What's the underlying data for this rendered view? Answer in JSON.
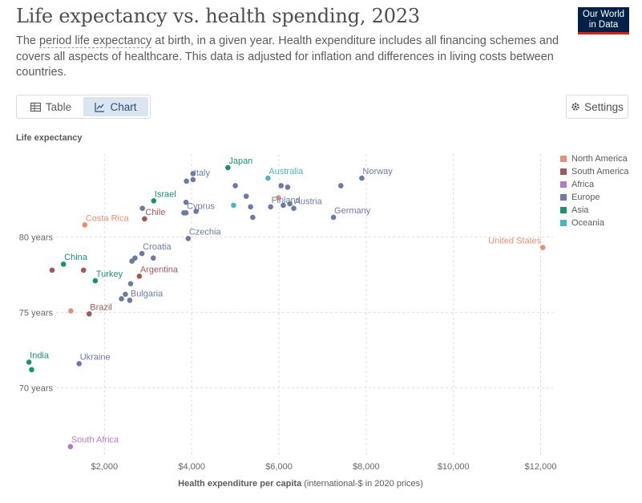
{
  "header": {
    "title": "Life expectancy vs. health spending, 2023",
    "subtitle_pre": "The ",
    "subtitle_link": "period life expectancy",
    "subtitle_post": " at birth, in a given year. Health expenditure includes all financing schemes and covers all aspects of healthcare. This data is adjusted for inflation and differences in living costs between countries.",
    "logo_line1": "Our World",
    "logo_line2": "in Data"
  },
  "toolbar": {
    "table_label": "Table",
    "chart_label": "Chart",
    "settings_label": "Settings"
  },
  "colors": {
    "North America": "#e38f79",
    "South America": "#a05858",
    "Africa": "#b37cc4",
    "Europe": "#6d7ba3",
    "Asia": "#1f8f74",
    "Oceania": "#4fb3c0"
  },
  "chart_data": {
    "type": "scatter",
    "xlabel_bold": "Health expenditure per capita",
    "xlabel_rest": " (international-$ in 2020 prices)",
    "ylabel": "Life expectancy",
    "xlim": [
      800,
      12100
    ],
    "ylim": [
      65.5,
      85.5
    ],
    "x_ticks": [
      2000,
      4000,
      6000,
      8000,
      10000,
      12000
    ],
    "x_tick_labels": [
      "$2,000",
      "$4,000",
      "$6,000",
      "$8,000",
      "$10,000",
      "$12,000"
    ],
    "y_ticks": [
      70,
      75,
      80
    ],
    "y_tick_labels": [
      "70 years",
      "75 years",
      "80 years"
    ],
    "legend": [
      "North America",
      "South America",
      "Africa",
      "Europe",
      "Asia",
      "Oceania"
    ],
    "points": [
      {
        "label": "United States",
        "x": 12050,
        "y": 79.3,
        "region": "North America"
      },
      {
        "label": "Costa Rica",
        "x": 1550,
        "y": 80.8,
        "region": "North America"
      },
      {
        "label": "",
        "x": 5990,
        "y": 82.6,
        "region": "North America"
      },
      {
        "label": "",
        "x": 1230,
        "y": 75.1,
        "region": "North America"
      },
      {
        "label": "Chile",
        "x": 2920,
        "y": 81.2,
        "region": "South America"
      },
      {
        "label": "Argentina",
        "x": 2800,
        "y": 77.4,
        "region": "South America"
      },
      {
        "label": "Brazil",
        "x": 1650,
        "y": 74.9,
        "region": "South America"
      },
      {
        "label": "",
        "x": 800,
        "y": 77.8,
        "region": "South America"
      },
      {
        "label": "",
        "x": 1520,
        "y": 77.8,
        "region": "South America"
      },
      {
        "label": "South Africa",
        "x": 1220,
        "y": 66.1,
        "region": "Africa"
      },
      {
        "label": "Italy",
        "x": 4030,
        "y": 83.8,
        "region": "Europe"
      },
      {
        "label": "",
        "x": 3880,
        "y": 83.7,
        "region": "Europe"
      },
      {
        "label": "",
        "x": 4030,
        "y": 84.2,
        "region": "Europe"
      },
      {
        "label": "Norway",
        "x": 7900,
        "y": 83.9,
        "region": "Europe"
      },
      {
        "label": "",
        "x": 7420,
        "y": 83.4,
        "region": "Europe"
      },
      {
        "label": "Finland",
        "x": 5810,
        "y": 82.0,
        "region": "Europe"
      },
      {
        "label": "Austria",
        "x": 6340,
        "y": 81.9,
        "region": "Europe"
      },
      {
        "label": "Germany",
        "x": 7250,
        "y": 81.3,
        "region": "Europe"
      },
      {
        "label": "Cyprus",
        "x": 3870,
        "y": 81.6,
        "region": "Europe"
      },
      {
        "label": "Czechia",
        "x": 3920,
        "y": 79.9,
        "region": "Europe"
      },
      {
        "label": "Croatia",
        "x": 2860,
        "y": 78.9,
        "region": "Europe"
      },
      {
        "label": "Bulgaria",
        "x": 2580,
        "y": 75.8,
        "region": "Europe"
      },
      {
        "label": "Ukraine",
        "x": 1420,
        "y": 71.6,
        "region": "Europe"
      },
      {
        "label": "",
        "x": 5000,
        "y": 83.4,
        "region": "Europe"
      },
      {
        "label": "",
        "x": 5250,
        "y": 82.7,
        "region": "Europe"
      },
      {
        "label": "",
        "x": 6050,
        "y": 83.4,
        "region": "Europe"
      },
      {
        "label": "",
        "x": 6200,
        "y": 83.3,
        "region": "Europe"
      },
      {
        "label": "",
        "x": 5350,
        "y": 82.0,
        "region": "Europe"
      },
      {
        "label": "",
        "x": 6100,
        "y": 82.1,
        "region": "Europe"
      },
      {
        "label": "",
        "x": 6250,
        "y": 82.2,
        "region": "Europe"
      },
      {
        "label": "",
        "x": 5400,
        "y": 81.3,
        "region": "Europe"
      },
      {
        "label": "",
        "x": 3870,
        "y": 82.3,
        "region": "Europe"
      },
      {
        "label": "",
        "x": 2870,
        "y": 81.9,
        "region": "Europe"
      },
      {
        "label": "",
        "x": 3820,
        "y": 81.6,
        "region": "Europe"
      },
      {
        "label": "",
        "x": 4100,
        "y": 81.7,
        "region": "Europe"
      },
      {
        "label": "",
        "x": 2700,
        "y": 78.6,
        "region": "Europe"
      },
      {
        "label": "",
        "x": 3120,
        "y": 78.6,
        "region": "Europe"
      },
      {
        "label": "",
        "x": 2630,
        "y": 78.4,
        "region": "Europe"
      },
      {
        "label": "",
        "x": 2600,
        "y": 76.9,
        "region": "Europe"
      },
      {
        "label": "",
        "x": 2480,
        "y": 76.2,
        "region": "Europe"
      },
      {
        "label": "",
        "x": 2390,
        "y": 75.9,
        "region": "Europe"
      },
      {
        "label": "Japan",
        "x": 4830,
        "y": 84.6,
        "region": "Asia"
      },
      {
        "label": "Israel",
        "x": 3130,
        "y": 82.4,
        "region": "Asia"
      },
      {
        "label": "China",
        "x": 1060,
        "y": 78.2,
        "region": "Asia"
      },
      {
        "label": "Turkey",
        "x": 1790,
        "y": 77.1,
        "region": "Asia"
      },
      {
        "label": "India",
        "x": 270,
        "y": 71.7,
        "region": "Asia"
      },
      {
        "label": "",
        "x": 330,
        "y": 71.2,
        "region": "Asia"
      },
      {
        "label": "Australia",
        "x": 5750,
        "y": 83.9,
        "region": "Oceania"
      },
      {
        "label": "",
        "x": 4960,
        "y": 82.1,
        "region": "Oceania"
      }
    ]
  }
}
